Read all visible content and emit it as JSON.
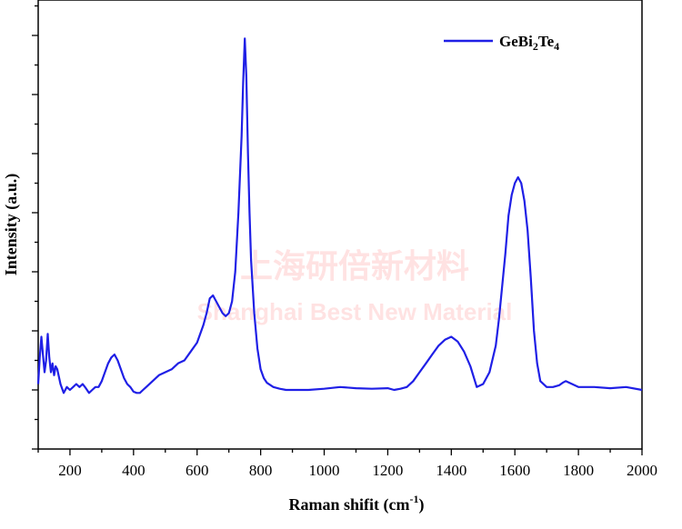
{
  "watermark": {
    "line1": "上海研倍新材料",
    "line2": "Shanghai Best New Material"
  },
  "chart_data": {
    "type": "line",
    "xlabel_main": "Raman shifit (cm",
    "xlabel_sup": "-1",
    "xlabel_end": ")",
    "ylabel": "Intensity (a.u.)",
    "xlim": [
      100,
      2000
    ],
    "ylim": [
      -1,
      6.6
    ],
    "x_ticks": [
      200,
      400,
      600,
      800,
      1000,
      1200,
      1400,
      1600,
      1800,
      2000
    ],
    "y_tick_labels_shown": false,
    "grid": false,
    "legend_position": "top-right",
    "series_color": "#1f1fe6",
    "series": [
      {
        "name": "GeBi2Te4",
        "legend_main": "GeBi",
        "legend_sub1": "2",
        "legend_mid": "Te",
        "legend_sub2": "4",
        "x": [
          100,
          105,
          110,
          115,
          120,
          125,
          130,
          135,
          140,
          145,
          150,
          155,
          160,
          170,
          180,
          190,
          200,
          210,
          220,
          230,
          240,
          250,
          260,
          270,
          280,
          290,
          300,
          310,
          320,
          330,
          340,
          350,
          360,
          370,
          380,
          390,
          400,
          410,
          420,
          430,
          440,
          460,
          480,
          500,
          520,
          540,
          560,
          580,
          600,
          620,
          630,
          640,
          650,
          660,
          670,
          680,
          690,
          700,
          710,
          720,
          730,
          740,
          745,
          750,
          755,
          760,
          765,
          770,
          780,
          790,
          800,
          810,
          820,
          840,
          860,
          880,
          900,
          950,
          1000,
          1050,
          1100,
          1150,
          1200,
          1220,
          1240,
          1260,
          1280,
          1300,
          1320,
          1340,
          1360,
          1380,
          1400,
          1420,
          1440,
          1460,
          1480,
          1500,
          1520,
          1540,
          1550,
          1560,
          1570,
          1580,
          1590,
          1600,
          1610,
          1620,
          1630,
          1640,
          1650,
          1660,
          1670,
          1680,
          1700,
          1720,
          1740,
          1750,
          1760,
          1780,
          1800,
          1850,
          1900,
          1950,
          2000
        ],
        "y": [
          0.1,
          0.55,
          0.9,
          0.6,
          0.3,
          0.5,
          0.95,
          0.55,
          0.3,
          0.45,
          0.25,
          0.4,
          0.35,
          0.1,
          -0.05,
          0.05,
          0.0,
          0.05,
          0.1,
          0.05,
          0.1,
          0.03,
          -0.05,
          0.0,
          0.05,
          0.05,
          0.15,
          0.3,
          0.45,
          0.55,
          0.6,
          0.5,
          0.35,
          0.2,
          0.1,
          0.05,
          -0.03,
          -0.05,
          -0.05,
          0.0,
          0.05,
          0.15,
          0.25,
          0.3,
          0.35,
          0.45,
          0.5,
          0.65,
          0.8,
          1.1,
          1.3,
          1.55,
          1.6,
          1.5,
          1.4,
          1.3,
          1.25,
          1.3,
          1.5,
          2.0,
          3.0,
          4.3,
          5.2,
          5.95,
          5.3,
          4.0,
          3.0,
          2.2,
          1.3,
          0.7,
          0.35,
          0.2,
          0.12,
          0.05,
          0.02,
          0.0,
          0.0,
          0.0,
          0.02,
          0.05,
          0.03,
          0.02,
          0.03,
          0.0,
          0.02,
          0.05,
          0.15,
          0.3,
          0.45,
          0.6,
          0.75,
          0.85,
          0.9,
          0.82,
          0.65,
          0.4,
          0.05,
          0.1,
          0.3,
          0.75,
          1.2,
          1.75,
          2.3,
          2.95,
          3.3,
          3.5,
          3.6,
          3.5,
          3.2,
          2.7,
          1.9,
          1.0,
          0.45,
          0.15,
          0.05,
          0.05,
          0.08,
          0.12,
          0.15,
          0.1,
          0.05,
          0.05,
          0.03,
          0.05,
          0.0
        ]
      }
    ]
  }
}
